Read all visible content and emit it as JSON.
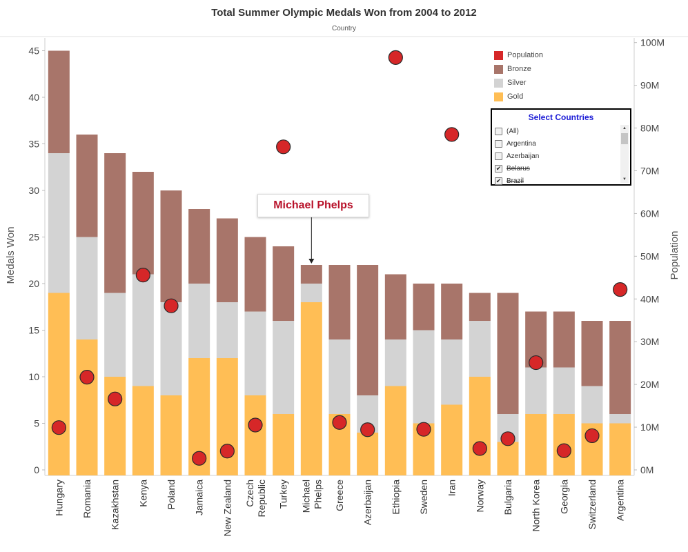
{
  "header": {
    "title": "Total Summer Olympic Medals Won from 2004 to 2012",
    "subtitle": "Country"
  },
  "colors": {
    "gold": "#ffbe55",
    "silver": "#d3d3d3",
    "bronze": "#a8756a",
    "population": "#d62728"
  },
  "legend": [
    {
      "label": "Population",
      "color": "#d62728"
    },
    {
      "label": "Bronze",
      "color": "#a8756a"
    },
    {
      "label": "Silver",
      "color": "#d3d3d3"
    },
    {
      "label": "Gold",
      "color": "#ffbe55"
    }
  ],
  "filter": {
    "title": "Select Countries",
    "items": [
      {
        "label": "(All)",
        "checked": false,
        "struck": false
      },
      {
        "label": "Argentina",
        "checked": false,
        "struck": false
      },
      {
        "label": "Azerbaijan",
        "checked": false,
        "struck": false
      },
      {
        "label": "Belarus",
        "checked": true,
        "struck": true
      },
      {
        "label": "Brazil",
        "checked": true,
        "struck": true
      }
    ]
  },
  "annotation": {
    "text": "Michael Phelps"
  },
  "chart_data": {
    "type": "bar",
    "stacked": true,
    "title": "Total Summer Olympic Medals Won from 2004 to 2012",
    "subtitle": "Country",
    "ylabel": "Medals Won",
    "y2label": "Population",
    "ylim": [
      0,
      47
    ],
    "y2lim": [
      0,
      102000000
    ],
    "yticks": [
      0,
      5,
      10,
      15,
      20,
      25,
      30,
      35,
      40,
      45
    ],
    "y2ticks": [
      "0M",
      "10M",
      "20M",
      "30M",
      "40M",
      "50M",
      "60M",
      "70M",
      "80M",
      "90M",
      "100M"
    ],
    "grid": false,
    "legend_position": "top-right",
    "categories": [
      "Hungary",
      "Romania",
      "Kazakhstan",
      "Kenya",
      "Poland",
      "Jamaica",
      "New Zealand",
      "Czech Republic",
      "Turkey",
      "Michael Phelps",
      "Greece",
      "Azerbaijan",
      "Ethiopia",
      "Sweden",
      "Iran",
      "Norway",
      "Bulgaria",
      "North Korea",
      "Georgia",
      "Switzerland",
      "Argentina"
    ],
    "category_lines": [
      [
        "Hungary"
      ],
      [
        "Romania"
      ],
      [
        "Kazakhstan"
      ],
      [
        "Kenya"
      ],
      [
        "Poland"
      ],
      [
        "Jamaica"
      ],
      [
        "New Zealand"
      ],
      [
        "Czech",
        "Republic"
      ],
      [
        "Turkey"
      ],
      [
        "Michael",
        "Phelps"
      ],
      [
        "Greece"
      ],
      [
        "Azerbaijan"
      ],
      [
        "Ethiopia"
      ],
      [
        "Sweden"
      ],
      [
        "Iran"
      ],
      [
        "Norway"
      ],
      [
        "Bulgaria"
      ],
      [
        "North Korea"
      ],
      [
        "Georgia"
      ],
      [
        "Switzerland"
      ],
      [
        "Argentina"
      ]
    ],
    "series": [
      {
        "name": "Gold",
        "values": [
          19,
          14,
          10,
          9,
          8,
          12,
          12,
          8,
          6,
          18,
          6,
          4,
          9,
          5,
          7,
          10,
          3,
          6,
          6,
          5,
          5
        ]
      },
      {
        "name": "Silver",
        "values": [
          15,
          11,
          9,
          12,
          10,
          8,
          6,
          9,
          10,
          2,
          8,
          4,
          5,
          10,
          7,
          6,
          3,
          5,
          5,
          4,
          1
        ]
      },
      {
        "name": "Bronze",
        "values": [
          11,
          11,
          15,
          11,
          12,
          8,
          9,
          8,
          8,
          2,
          8,
          14,
          7,
          5,
          6,
          3,
          13,
          6,
          6,
          7,
          10
        ]
      }
    ],
    "population": [
      9.9,
      21.7,
      16.6,
      45.6,
      38.4,
      2.7,
      4.4,
      10.5,
      75.6,
      null,
      11.1,
      9.4,
      96.5,
      9.5,
      78.5,
      5.0,
      7.3,
      25.1,
      4.5,
      8.0,
      42.2
    ]
  }
}
